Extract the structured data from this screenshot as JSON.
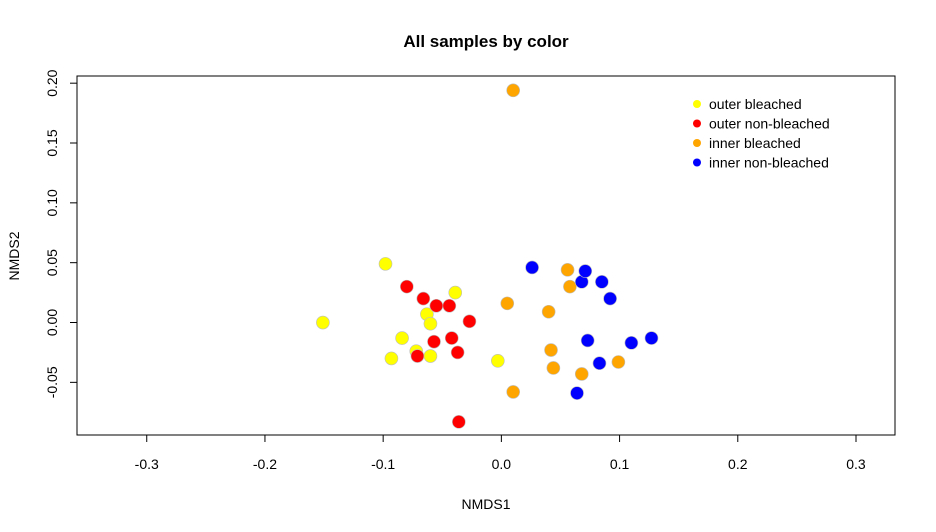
{
  "chart_data": {
    "type": "scatter",
    "title": "All samples by color",
    "xlabel": "NMDS1",
    "ylabel": "NMDS2",
    "xlim": [
      -0.359,
      0.333
    ],
    "ylim": [
      -0.094,
      0.206
    ],
    "x_ticks": [
      -0.3,
      -0.2,
      -0.1,
      0.0,
      0.1,
      0.2,
      0.3
    ],
    "x_tick_labels": [
      "-0.3",
      "-0.2",
      "-0.1",
      "0.0",
      "0.1",
      "0.2",
      "0.3"
    ],
    "y_ticks": [
      -0.05,
      0.0,
      0.05,
      0.1,
      0.15,
      0.2
    ],
    "y_tick_labels": [
      "-0.05",
      "0.00",
      "0.05",
      "0.10",
      "0.15",
      "0.20"
    ],
    "grid": false,
    "legend_position": "top-right",
    "series": [
      {
        "name": "outer bleached",
        "color": "#FFFF00",
        "points": [
          [
            -0.151,
            0.0
          ],
          [
            -0.098,
            0.049
          ],
          [
            -0.093,
            -0.03
          ],
          [
            -0.084,
            -0.013
          ],
          [
            -0.072,
            -0.024
          ],
          [
            -0.063,
            0.007
          ],
          [
            -0.06,
            -0.001
          ],
          [
            -0.06,
            -0.028
          ],
          [
            -0.039,
            0.025
          ],
          [
            -0.003,
            -0.032
          ]
        ]
      },
      {
        "name": "outer non-bleached",
        "color": "#FF0000",
        "points": [
          [
            -0.08,
            0.03
          ],
          [
            -0.066,
            0.02
          ],
          [
            -0.071,
            -0.028
          ],
          [
            -0.055,
            0.014
          ],
          [
            -0.057,
            -0.016
          ],
          [
            -0.044,
            0.014
          ],
          [
            -0.042,
            -0.013
          ],
          [
            -0.037,
            -0.025
          ],
          [
            -0.027,
            0.001
          ],
          [
            -0.036,
            -0.083
          ]
        ]
      },
      {
        "name": "inner bleached",
        "color": "#FFA500",
        "points": [
          [
            0.01,
            0.194
          ],
          [
            0.005,
            0.016
          ],
          [
            0.01,
            -0.058
          ],
          [
            0.04,
            0.009
          ],
          [
            0.042,
            -0.023
          ],
          [
            0.044,
            -0.038
          ],
          [
            0.056,
            0.044
          ],
          [
            0.058,
            0.03
          ],
          [
            0.068,
            -0.043
          ],
          [
            0.099,
            -0.033
          ]
        ]
      },
      {
        "name": "inner non-bleached",
        "color": "#0000FF",
        "points": [
          [
            0.026,
            0.046
          ],
          [
            0.064,
            -0.059
          ],
          [
            0.068,
            0.034
          ],
          [
            0.071,
            0.043
          ],
          [
            0.073,
            -0.015
          ],
          [
            0.083,
            -0.034
          ],
          [
            0.085,
            0.034
          ],
          [
            0.092,
            0.02
          ],
          [
            0.11,
            -0.017
          ],
          [
            0.127,
            -0.013
          ]
        ]
      }
    ]
  }
}
